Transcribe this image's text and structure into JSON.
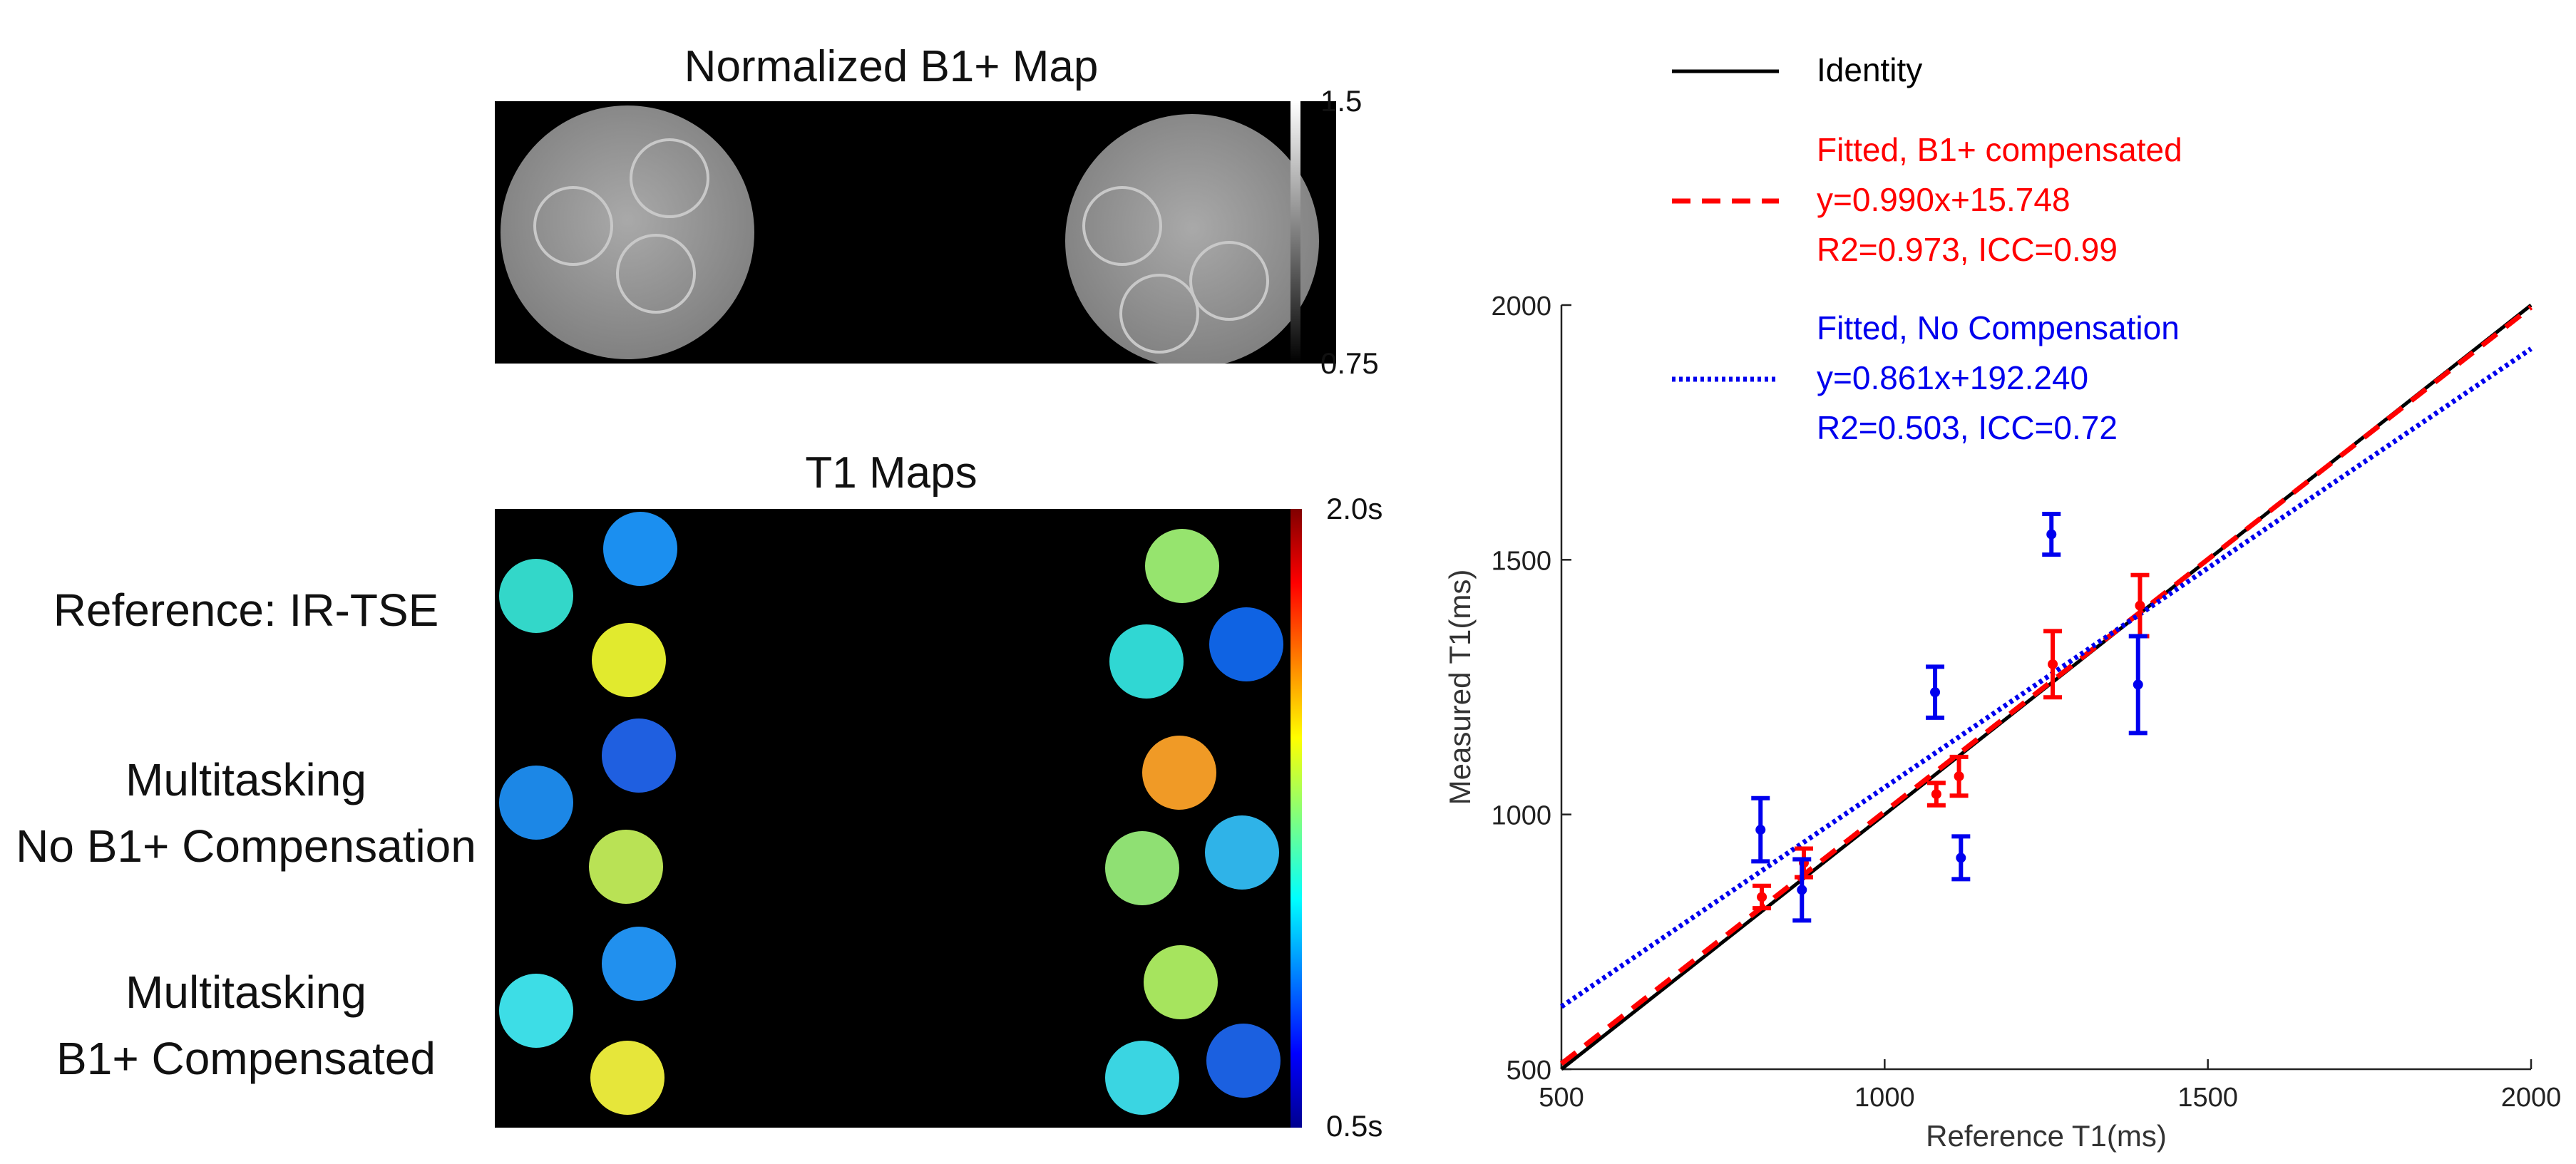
{
  "b1_panel": {
    "title": "Normalized B1+ Map",
    "colorbar": {
      "max_label": "1.5",
      "min_label": "0.75"
    }
  },
  "t1_panel": {
    "title": "T1 Maps",
    "colorbar": {
      "max_label": "2.0s",
      "min_label": "0.5s"
    },
    "rows": [
      {
        "label_lines": [
          "Reference: IR-TSE"
        ]
      },
      {
        "label_lines": [
          "Multitasking",
          "No B1+ Compensation"
        ]
      },
      {
        "label_lines": [
          "Multitasking",
          "B1+ Compensated"
        ]
      }
    ]
  },
  "colors": {
    "identity": "#000000",
    "compensated": "#ff0000",
    "no_compensation": "#0000ee",
    "map_background": "#000000"
  },
  "chart_data": {
    "type": "scatter",
    "xlabel": "Reference T1(ms)",
    "ylabel": "Measured T1(ms)",
    "xlim": [
      500,
      2000
    ],
    "ylim": [
      500,
      2000
    ],
    "xticks": [
      500,
      1000,
      1500,
      2000
    ],
    "yticks": [
      500,
      1000,
      1500,
      2000
    ],
    "xtick_labels": [
      "500",
      "1000",
      "1500",
      "2000"
    ],
    "ytick_labels": [
      "500",
      "1000",
      "1500",
      "2000"
    ],
    "legend_position": "top-left, outside above axes",
    "legend": [
      {
        "key": "identity",
        "lines": [
          "Identity"
        ],
        "style": "solid"
      },
      {
        "key": "compensated",
        "lines": [
          "Fitted, B1+ compensated",
          "y=0.990x+15.748",
          "R2=0.973, ICC=0.99"
        ],
        "style": "dashed",
        "fit_equation": "y=0.990x+15.748",
        "r2_text": "R2=0.973, ICC=0.99"
      },
      {
        "key": "no_compensation",
        "lines": [
          "Fitted, No Compensation",
          "y=0.861x+192.240",
          "R2=0.503, ICC=0.72"
        ],
        "style": "dotted",
        "fit_equation": "y=0.861x+192.240",
        "r2_text": "R2=0.503, ICC=0.72"
      }
    ],
    "lines": [
      {
        "name": "Identity",
        "slope": 1.0,
        "intercept": 0,
        "color_key": "identity",
        "style": "solid"
      },
      {
        "name": "Fitted, B1+ compensated",
        "slope": 0.99,
        "intercept": 15.748,
        "color_key": "compensated",
        "style": "dashed"
      },
      {
        "name": "Fitted, No Compensation",
        "slope": 0.861,
        "intercept": 192.24,
        "color_key": "no_compensation",
        "style": "dotted"
      }
    ],
    "series": [
      {
        "name": "B1+ compensated",
        "color_key": "compensated",
        "points": [
          {
            "x": 810,
            "y": 838,
            "err": 22
          },
          {
            "x": 875,
            "y": 905,
            "err": 28
          },
          {
            "x": 1080,
            "y": 1040,
            "err": 22
          },
          {
            "x": 1115,
            "y": 1075,
            "err": 38
          },
          {
            "x": 1260,
            "y": 1295,
            "err": 65
          },
          {
            "x": 1395,
            "y": 1410,
            "err": 60
          }
        ]
      },
      {
        "name": "No Compensation",
        "color_key": "no_compensation",
        "points": [
          {
            "x": 808,
            "y": 970,
            "err": 62
          },
          {
            "x": 872,
            "y": 852,
            "err": 60
          },
          {
            "x": 1078,
            "y": 1240,
            "err": 50
          },
          {
            "x": 1118,
            "y": 915,
            "err": 42
          },
          {
            "x": 1258,
            "y": 1550,
            "err": 40
          },
          {
            "x": 1392,
            "y": 1255,
            "err": 95
          }
        ]
      }
    ]
  }
}
